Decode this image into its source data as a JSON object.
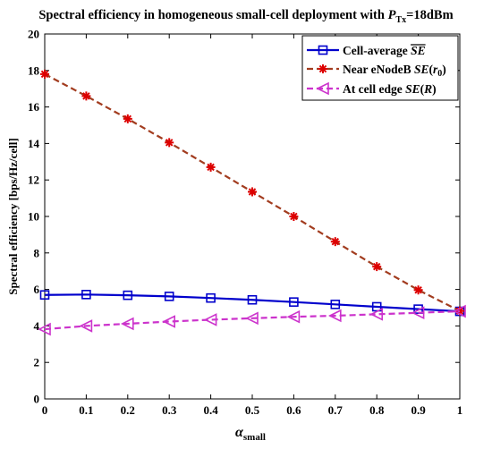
{
  "chart_data": {
    "type": "line",
    "title": {
      "prefix": "Spectral efficiency in homogeneous small-cell deployment with ",
      "symbol": "P",
      "subscript": "Tx",
      "suffix": "=18dBm"
    },
    "xlabel": {
      "symbol": "α",
      "subscript": "small"
    },
    "ylabel": "Spectral efficiency [bps/Hz/cell]",
    "xlim": [
      0,
      1
    ],
    "ylim": [
      0,
      20
    ],
    "xticks": [
      "0",
      "0.1",
      "0.2",
      "0.3",
      "0.4",
      "0.5",
      "0.6",
      "0.7",
      "0.8",
      "0.9",
      "1"
    ],
    "yticks": [
      "0",
      "2",
      "4",
      "6",
      "8",
      "10",
      "12",
      "14",
      "16",
      "18",
      "20"
    ],
    "grid": false,
    "legend_position": "top-right",
    "x": [
      0,
      0.1,
      0.2,
      0.3,
      0.4,
      0.5,
      0.6,
      0.7,
      0.8,
      0.9,
      1.0
    ],
    "series": [
      {
        "legend": {
          "text": "Cell-average ",
          "math": "SE",
          "overline": true
        },
        "color": "#0000cc",
        "line": "solid",
        "marker": "square",
        "values": [
          5.7,
          5.72,
          5.68,
          5.62,
          5.53,
          5.43,
          5.31,
          5.18,
          5.05,
          4.92,
          4.8
        ]
      },
      {
        "legend": {
          "text": "Near eNodeB ",
          "math": "SE",
          "arg": "r",
          "argsub": "0"
        },
        "color": "#a23c1f",
        "marker_color": "#dd0000",
        "line": "dashed",
        "marker": "star",
        "values": [
          17.8,
          16.6,
          15.35,
          14.05,
          12.7,
          11.35,
          10.0,
          8.62,
          7.25,
          5.97,
          4.82
        ]
      },
      {
        "legend": {
          "text": "At cell edge ",
          "math": "SE",
          "arg": "R"
        },
        "color": "#cc33cc",
        "line": "dashed",
        "marker": "triangle-left",
        "values": [
          3.82,
          4.0,
          4.12,
          4.24,
          4.34,
          4.42,
          4.5,
          4.56,
          4.64,
          4.72,
          4.8
        ]
      }
    ]
  }
}
